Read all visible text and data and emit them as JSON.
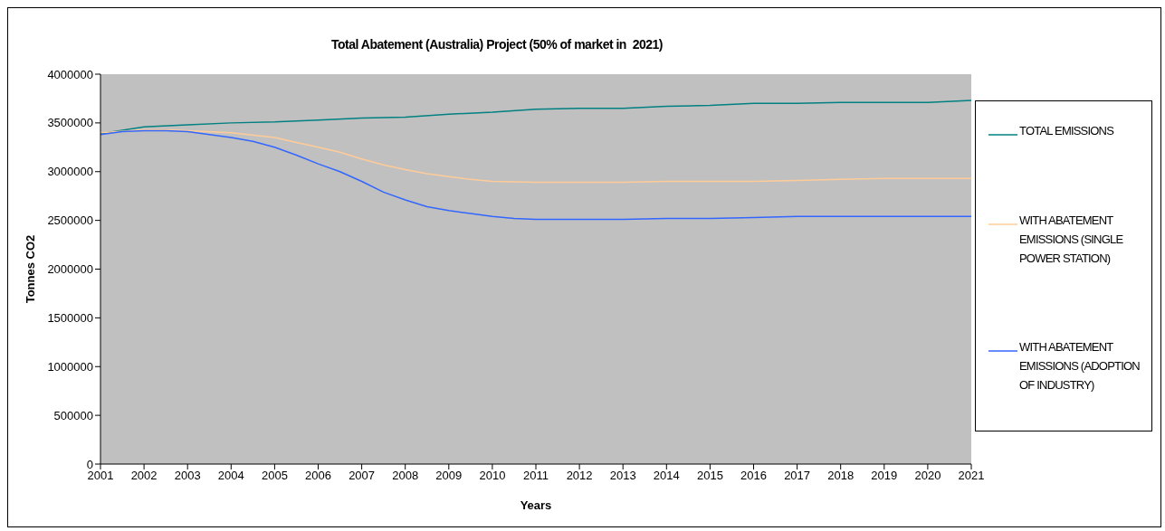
{
  "chart_data": {
    "type": "line",
    "title": "Total Abatement (Australia) Project (50% of market in  2021)",
    "xlabel": "Years",
    "ylabel": "Tonnes CO2",
    "xlim": [
      2001,
      2021
    ],
    "xticks": [
      2001,
      2002,
      2003,
      2004,
      2005,
      2006,
      2007,
      2008,
      2009,
      2010,
      2011,
      2012,
      2013,
      2014,
      2015,
      2016,
      2017,
      2018,
      2019,
      2020,
      2021
    ],
    "ylim": [
      0,
      4000000
    ],
    "yticks": [
      0,
      500000,
      1000000,
      1500000,
      2000000,
      2500000,
      3000000,
      3500000,
      4000000
    ],
    "grid": false,
    "legend": "right",
    "marker": "none",
    "line_style": "solid",
    "series": [
      {
        "name": "TOTAL EMISSIONS",
        "color": "#008080",
        "x": [
          2001,
          2002,
          2003,
          2004,
          2005,
          2006,
          2007,
          2008,
          2009,
          2010,
          2011,
          2012,
          2013,
          2014,
          2015,
          2016,
          2017,
          2018,
          2019,
          2020,
          2021
        ],
        "values": [
          3390000,
          3460000,
          3480000,
          3500000,
          3510000,
          3530000,
          3550000,
          3560000,
          3590000,
          3610000,
          3640000,
          3650000,
          3650000,
          3670000,
          3680000,
          3700000,
          3700000,
          3710000,
          3710000,
          3710000,
          3730000
        ]
      },
      {
        "name": "WITH ABATEMENT EMISSIONS (SINGLE POWER STATION)",
        "color": "#ffcc99",
        "x": [
          2001,
          2002,
          2002.5,
          2003,
          2004,
          2005,
          2005.5,
          2006,
          2006.5,
          2007,
          2007.5,
          2008,
          2008.5,
          2009,
          2009.5,
          2010,
          2011,
          2012,
          2013,
          2014,
          2015,
          2016,
          2017,
          2018,
          2019,
          2020,
          2021
        ],
        "values": [
          3400000,
          3430000,
          3430000,
          3420000,
          3400000,
          3350000,
          3300000,
          3250000,
          3200000,
          3130000,
          3070000,
          3020000,
          2980000,
          2950000,
          2920000,
          2900000,
          2890000,
          2890000,
          2890000,
          2900000,
          2900000,
          2900000,
          2910000,
          2920000,
          2930000,
          2930000,
          2930000
        ]
      },
      {
        "name": "WITH ABATEMENT EMISSIONS (ADOPTION OF INDUSTRY)",
        "color": "#3366ff",
        "x": [
          2001,
          2001.5,
          2002,
          2002.5,
          2003,
          2003.5,
          2004,
          2004.5,
          2005,
          2005.5,
          2006,
          2006.5,
          2007,
          2007.5,
          2008,
          2008.5,
          2009,
          2009.5,
          2010,
          2010.5,
          2011,
          2012,
          2013,
          2014,
          2015,
          2016,
          2017,
          2018,
          2019,
          2020,
          2021
        ],
        "values": [
          3380000,
          3410000,
          3420000,
          3420000,
          3410000,
          3380000,
          3350000,
          3310000,
          3250000,
          3170000,
          3080000,
          3000000,
          2900000,
          2790000,
          2710000,
          2640000,
          2600000,
          2570000,
          2540000,
          2520000,
          2510000,
          2510000,
          2510000,
          2520000,
          2520000,
          2530000,
          2540000,
          2540000,
          2540000,
          2540000,
          2540000
        ]
      }
    ]
  }
}
